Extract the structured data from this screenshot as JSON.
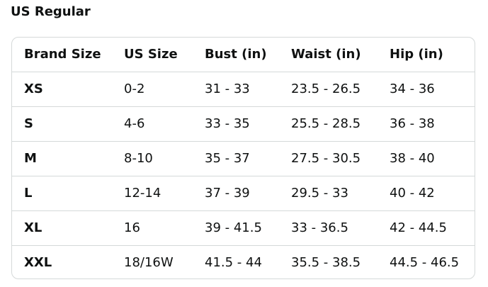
{
  "title": "US Regular",
  "table": {
    "headers": [
      "Brand Size",
      "US Size",
      "Bust (in)",
      "Waist (in)",
      "Hip (in)"
    ],
    "rows": [
      [
        "XS",
        "0-2",
        "31 - 33",
        "23.5 - 26.5",
        "34 - 36"
      ],
      [
        "S",
        "4-6",
        "33 - 35",
        "25.5 - 28.5",
        "36 - 38"
      ],
      [
        "M",
        "8-10",
        "35 - 37",
        "27.5 - 30.5",
        "38 - 40"
      ],
      [
        "L",
        "12-14",
        "37 - 39",
        "29.5 - 33",
        "40 - 42"
      ],
      [
        "XL",
        "16",
        "39 - 41.5",
        "33 - 36.5",
        "42 - 44.5"
      ],
      [
        "XXL",
        "18/16W",
        "41.5 - 44",
        "35.5 - 38.5",
        "44.5 - 46.5"
      ]
    ]
  }
}
